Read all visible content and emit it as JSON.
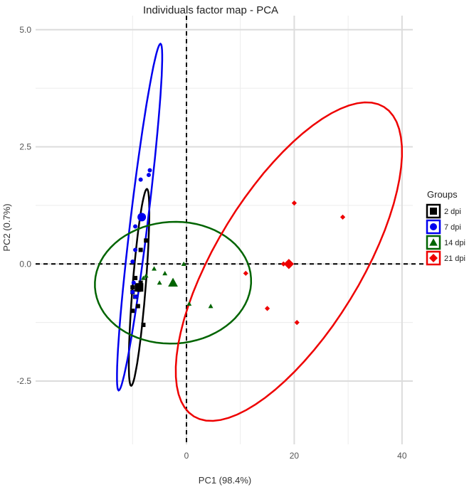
{
  "chart_data": {
    "type": "scatter",
    "title": "Individuals factor map - PCA",
    "xlabel": "PC1 (98.4%)",
    "ylabel": "PC2 (0.7%)",
    "xlim": [
      -28,
      42
    ],
    "ylim": [
      -3.85,
      5.3
    ],
    "x_ticks": [
      0,
      20,
      40
    ],
    "x_tick_labels": [
      "0",
      "20",
      "40"
    ],
    "y_ticks": [
      -2.5,
      0,
      2.5,
      5
    ],
    "y_tick_labels": [
      "-2.5",
      "0.0",
      "2.5",
      "5.0"
    ],
    "grid": true,
    "reference_lines": {
      "x": 0,
      "y": 0,
      "style": "dashed"
    },
    "legend": {
      "title": "Groups",
      "position": "right"
    },
    "series": [
      {
        "name": "2 dpi",
        "color": "#000000",
        "marker": "square",
        "points": [
          [
            -7.5,
            0.5
          ],
          [
            -8.5,
            0.3
          ],
          [
            -9.5,
            -0.3
          ],
          [
            -10,
            -0.6
          ],
          [
            -9,
            -0.5
          ],
          [
            -8.5,
            -0.4
          ],
          [
            -9.5,
            -0.7
          ],
          [
            -10,
            -1.0
          ],
          [
            -8,
            -1.3
          ],
          [
            -9,
            -0.9
          ],
          [
            -10,
            -0.5
          ],
          [
            -8.8,
            -0.55
          ]
        ],
        "centroid": [
          -8.8,
          -0.5
        ],
        "ellipse": {
          "cx": -8.8,
          "cy": -0.5,
          "x_extent": [
            -10.7,
            -6.9
          ],
          "y_extent": [
            -2.6,
            1.6
          ]
        }
      },
      {
        "name": "7 dpi",
        "color": "#0000ee",
        "marker": "circle",
        "points": [
          [
            -8.5,
            1.8
          ],
          [
            -7,
            1.9
          ],
          [
            -6.8,
            2.0
          ],
          [
            -9.5,
            0.8
          ],
          [
            -10,
            0.05
          ],
          [
            -10,
            -0.6
          ],
          [
            -9.5,
            -0.7
          ],
          [
            -9.8,
            -0.4
          ],
          [
            -9.5,
            0.3
          ]
        ],
        "centroid": [
          -8.3,
          1.0
        ],
        "ellipse": {
          "cx": -8.4,
          "cy": 1.0,
          "x_extent": [
            -12.9,
            -4.5
          ],
          "y_extent": [
            -2.7,
            4.7
          ]
        }
      },
      {
        "name": "14 dpi",
        "color": "#006400",
        "marker": "triangle",
        "points": [
          [
            -0.5,
            0.0
          ],
          [
            -4,
            -0.2
          ],
          [
            -6,
            -0.1
          ],
          [
            -2.5,
            -0.35
          ],
          [
            -5,
            -0.4
          ],
          [
            0.5,
            -0.85
          ],
          [
            4.5,
            -0.9
          ],
          [
            -8.0,
            -0.3
          ],
          [
            -7.5,
            -0.25
          ]
        ],
        "centroid": [
          -2.5,
          -0.4
        ],
        "ellipse": {
          "cx": -2.5,
          "cy": -0.4,
          "x_extent": [
            -17,
            12
          ],
          "y_extent": [
            -1.7,
            0.9
          ]
        }
      },
      {
        "name": "21 dpi",
        "color": "#ee0000",
        "marker": "diamond",
        "points": [
          [
            20,
            1.3
          ],
          [
            29,
            1.0
          ],
          [
            18,
            0.0
          ],
          [
            19,
            0.0
          ],
          [
            11,
            -0.2
          ],
          [
            15,
            -0.95
          ],
          [
            20.5,
            -1.25
          ]
        ],
        "centroid": [
          19,
          0.0
        ],
        "ellipse": {
          "cx": 19,
          "cy": 0.0,
          "x_extent": [
            -2,
            40
          ],
          "y_extent": [
            -3.35,
            3.45
          ]
        }
      }
    ]
  }
}
